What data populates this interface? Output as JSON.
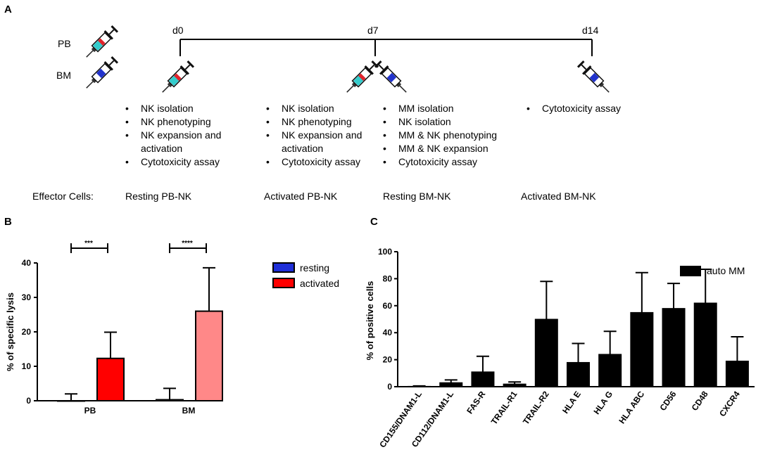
{
  "panelA": {
    "letter": "A",
    "legend_pb": "PB",
    "legend_bm": "BM",
    "days": [
      "d0",
      "d7",
      "d14"
    ],
    "col1": [
      "NK isolation",
      "NK phenotyping",
      "NK expansion and",
      "activation",
      "Cytotoxicity assay"
    ],
    "col2": [
      "NK isolation",
      "NK phenotyping",
      "NK expansion and",
      "activation",
      "Cytotoxicity assay"
    ],
    "col3": [
      "MM isolation",
      "NK isolation",
      "MM & NK phenotyping",
      "MM & NK expansion",
      "Cytotoxicity assay"
    ],
    "col4": [
      "Cytotoxicity assay"
    ],
    "effector_label": "Effector Cells:",
    "effectors": [
      "Resting PB-NK",
      "Activated PB-NK",
      "Resting BM-NK",
      "Activated BM-NK"
    ],
    "colors": {
      "blue_text": "#1F77C8",
      "red_text": "#E8212B",
      "syringe_pb": "#33CCCC",
      "syringe_bm": "#2233CC",
      "plunger_red": "#E0242C"
    }
  },
  "chart_data": [
    {
      "panel": "B",
      "type": "bar",
      "ylabel": "% of specific lysis",
      "ylim": [
        0,
        40
      ],
      "yticks": [
        0,
        10,
        20,
        30,
        40
      ],
      "categories": [
        "PB",
        "BM"
      ],
      "series": [
        {
          "name": "resting",
          "values": [
            0,
            0.3
          ],
          "errors": [
            2,
            3.3
          ],
          "colors": [
            "#1F2FD8",
            "#1F2FD8"
          ]
        },
        {
          "name": "activated",
          "values": [
            12.3,
            26
          ],
          "errors": [
            7.6,
            12.6
          ],
          "colors": [
            "#FF0000",
            "#FF8888"
          ]
        }
      ],
      "significance": [
        "***",
        "****"
      ],
      "legend": [
        "resting",
        "activated"
      ],
      "legend_colors": [
        "#1F2FD8",
        "#FF0000"
      ]
    },
    {
      "panel": "C",
      "type": "bar",
      "ylabel": "% of positive cells",
      "ylim": [
        0,
        100
      ],
      "yticks": [
        0,
        20,
        40,
        60,
        80,
        100
      ],
      "categories": [
        "CD155/DNAM1-L",
        "CD112/DNAM1-L",
        "FAS-R",
        "TRAIL-R1",
        "TRAIL-R2",
        "HLA E",
        "HLA G",
        "HLA ABC",
        "CD56",
        "CD48",
        "CXCR4"
      ],
      "series": [
        {
          "name": "auto MM",
          "values": [
            0.3,
            3,
            11,
            2,
            50,
            18,
            24,
            55,
            58,
            62,
            19
          ],
          "errors": [
            0.3,
            2,
            11.5,
            1.5,
            28,
            14,
            17,
            29.5,
            18.5,
            25,
            18
          ]
        }
      ],
      "legend": [
        "auto MM"
      ]
    }
  ]
}
